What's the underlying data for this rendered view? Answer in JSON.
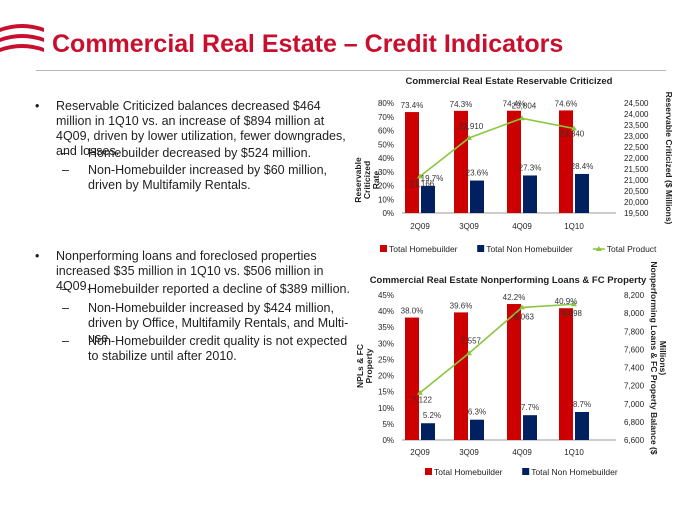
{
  "slide": {
    "title": "Commercial Real Estate – Credit Indicators",
    "bullets": [
      {
        "marker": "•",
        "text": "Reservable Criticized balances decreased $464 million in 1Q10 vs. an increase of $894 million at 4Q09, driven by lower utilization, fewer downgrades, and losses.",
        "sub": [
          {
            "marker": "–",
            "text": "Homebuilder decreased by $524 million."
          },
          {
            "marker": "–",
            "text": "Non-Homebuilder increased by $60 million, driven by Multifamily Rentals."
          }
        ]
      },
      {
        "marker": "•",
        "text": "Nonperforming loans and foreclosed properties increased $35 million in 1Q10 vs. $506 million in 4Q09.",
        "sub": [
          {
            "marker": "–",
            "text": "Homebuilder reported a decline of $389 million."
          },
          {
            "marker": "–",
            "text": "Non-Homebuilder increased by $424 million, driven by Office, Multifamily Rentals, and Multi-use."
          },
          {
            "marker": "–",
            "text": "Non-Homebuilder credit quality is not expected to stabilize until after 2010."
          }
        ]
      }
    ]
  },
  "colors": {
    "title": "#c8102e",
    "homebuilder": "#cc0000",
    "non_homebuilder": "#002060",
    "total_line": "#8cc63f",
    "logo": "#c8102e"
  },
  "chart_data": [
    {
      "type": "bar",
      "title": "Commercial Real Estate Reservable Criticized",
      "categories": [
        "2Q09",
        "3Q09",
        "4Q09",
        "1Q10"
      ],
      "ylabel": "Reservable Criticized Rate",
      "y2label": "Reservable Criticized ($ Millions)",
      "ylim": [
        0,
        80
      ],
      "y_ticks": [
        "0%",
        "10%",
        "20%",
        "30%",
        "40%",
        "50%",
        "60%",
        "70%",
        "80%"
      ],
      "y2lim": [
        19500,
        24500
      ],
      "y2_ticks": [
        "19,500",
        "20,000",
        "20,500",
        "21,000",
        "21,500",
        "22,000",
        "22,500",
        "23,000",
        "23,500",
        "24,000",
        "24,500"
      ],
      "series": [
        {
          "name": "Total Homebuilder",
          "axis": "left",
          "values": [
            73.4,
            74.3,
            74.4,
            74.6
          ],
          "labels": [
            "73.4%",
            "74.3%",
            "74.4%",
            "74.6%"
          ]
        },
        {
          "name": "Total Non Homebuilder",
          "axis": "left",
          "values": [
            19.7,
            23.6,
            27.3,
            28.4
          ],
          "labels": [
            "19.7%",
            "23.6%",
            "27.3%",
            "28.4%"
          ]
        },
        {
          "name": "Total Product",
          "axis": "right",
          "kind": "line",
          "values": [
            21166,
            22910,
            23804,
            23340
          ],
          "labels": [
            "21,166",
            "22,910",
            "23,804",
            "23,340"
          ]
        }
      ],
      "legend": "bottom"
    },
    {
      "type": "bar",
      "title": "Commercial Real Estate Nonperforming Loans & FC Property",
      "categories": [
        "2Q09",
        "3Q09",
        "4Q09",
        "1Q10"
      ],
      "ylabel": "NPLs & FC Property",
      "y2label": "Nonperforming Loans & FC Property Balance ($ Millions)",
      "ylim": [
        0,
        45
      ],
      "y_ticks": [
        "0%",
        "5%",
        "10%",
        "15%",
        "20%",
        "25%",
        "30%",
        "35%",
        "40%",
        "45%"
      ],
      "y2lim": [
        6600,
        8200
      ],
      "y2_ticks": [
        "6,600",
        "6,800",
        "7,000",
        "7,200",
        "7,400",
        "7,600",
        "7,800",
        "8,000",
        "8,200"
      ],
      "series": [
        {
          "name": "Total Homebuilder",
          "axis": "left",
          "values": [
            38.0,
            39.6,
            42.2,
            40.9
          ],
          "labels": [
            "38.0%",
            "39.6%",
            "42.2%",
            "40.9%"
          ]
        },
        {
          "name": "Total Non Homebuilder",
          "axis": "left",
          "values": [
            5.2,
            6.3,
            7.7,
            8.7
          ],
          "labels": [
            "5.2%",
            "6.3%",
            "7.7%",
            "8.7%"
          ]
        },
        {
          "name": "",
          "axis": "right",
          "kind": "line",
          "values": [
            7122,
            7557,
            8063,
            8098
          ],
          "labels": [
            "7,122",
            "7,557",
            "8,063",
            "8,098"
          ]
        }
      ],
      "legend": "bottom"
    }
  ]
}
